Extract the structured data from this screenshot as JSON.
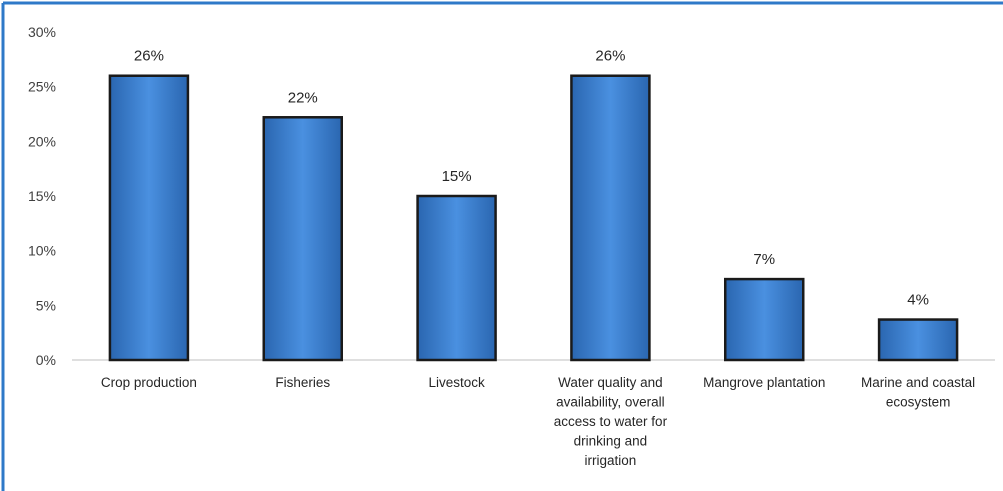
{
  "colors": {
    "frame_border": "#2f79c8",
    "bar_fill": "#3a7fd0",
    "bar_edge": "#1a1a1a",
    "axis": "#bfbfbf"
  },
  "chart_data": {
    "type": "bar",
    "title": "",
    "xlabel": "",
    "ylabel": "",
    "ylim": [
      0,
      30
    ],
    "y_ticks": [
      "0%",
      "5%",
      "10%",
      "15%",
      "20%",
      "25%",
      "30%"
    ],
    "y_tick_values": [
      0,
      5,
      10,
      15,
      20,
      25,
      30
    ],
    "grid": false,
    "legend": "none",
    "categories": [
      "Crop production",
      "Fisheries",
      "Livestock",
      "Water quality and availability, overall access to water for drinking and irrigation",
      "Mangrove plantation",
      "Marine and coastal ecosystem"
    ],
    "category_label_lines": [
      [
        "Crop production"
      ],
      [
        "Fisheries"
      ],
      [
        "Livestock"
      ],
      [
        "Water quality and",
        "availability, overall",
        "access to water for",
        "drinking and",
        "irrigation"
      ],
      [
        "Mangrove plantation"
      ],
      [
        "Marine and coastal",
        "ecosystem"
      ]
    ],
    "values": [
      26,
      22.2,
      15,
      26,
      7.4,
      3.7
    ],
    "data_labels": [
      "26%",
      "22%",
      "15%",
      "26%",
      "7%",
      "4%"
    ]
  }
}
